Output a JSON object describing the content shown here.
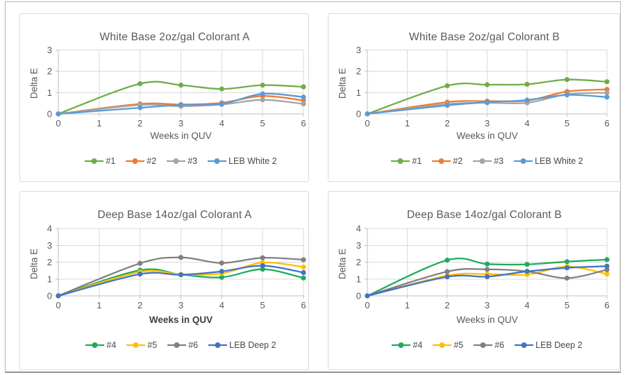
{
  "page": {
    "background": "#ffffff",
    "frame_border_color": "#b3b3b3",
    "panel_border_color": "#d9d9d9",
    "grid_color": "#d9d9d9",
    "axis_color": "#bfbfbf",
    "text_color": "#595959"
  },
  "chart_data": [
    {
      "type": "line",
      "title": "White Base 2oz/gal Colorant A",
      "xlabel": "Weeks in QUV",
      "ylabel": "Delta E",
      "xlabel_bold": false,
      "x": [
        0,
        2,
        3,
        4,
        5,
        6
      ],
      "xticks": [
        0,
        1,
        2,
        3,
        4,
        5,
        6
      ],
      "yticks": [
        0,
        1,
        2,
        3
      ],
      "xlim": [
        0,
        6
      ],
      "ylim": [
        0,
        3
      ],
      "grid": true,
      "legend_position": "bottom",
      "marker": "circle",
      "line_style": "smooth",
      "series": [
        {
          "name": "#1",
          "color": "#70AD47",
          "values": [
            0,
            1.42,
            1.35,
            1.17,
            1.35,
            1.27
          ]
        },
        {
          "name": "#2",
          "color": "#ED7D31",
          "values": [
            0,
            0.47,
            0.44,
            0.52,
            0.84,
            0.63
          ]
        },
        {
          "name": "#3",
          "color": "#A5A5A5",
          "values": [
            0,
            0.42,
            0.36,
            0.44,
            0.66,
            0.47
          ]
        },
        {
          "name": "LEB White 2",
          "color": "#5B9BD5",
          "values": [
            0,
            0.29,
            0.42,
            0.47,
            0.94,
            0.79
          ]
        }
      ]
    },
    {
      "type": "line",
      "title": "White Base 2oz/gal Colorant B",
      "xlabel": "Weeks in QUV",
      "ylabel": "Delta E",
      "xlabel_bold": false,
      "x": [
        0,
        2,
        3,
        4,
        5,
        6
      ],
      "xticks": [
        0,
        1,
        2,
        3,
        4,
        5,
        6
      ],
      "yticks": [
        0,
        1,
        2,
        3
      ],
      "xlim": [
        0,
        6
      ],
      "ylim": [
        0,
        3
      ],
      "grid": true,
      "legend_position": "bottom",
      "marker": "circle",
      "line_style": "smooth",
      "series": [
        {
          "name": "#1",
          "color": "#70AD47",
          "values": [
            0,
            1.32,
            1.37,
            1.39,
            1.61,
            1.51
          ]
        },
        {
          "name": "#2",
          "color": "#ED7D31",
          "values": [
            0,
            0.55,
            0.6,
            0.62,
            1.05,
            1.15
          ]
        },
        {
          "name": "#3",
          "color": "#A5A5A5",
          "values": [
            0,
            0.46,
            0.52,
            0.52,
            0.92,
            0.99
          ]
        },
        {
          "name": "LEB White 2",
          "color": "#5B9BD5",
          "values": [
            0,
            0.4,
            0.55,
            0.65,
            0.89,
            0.79
          ]
        }
      ]
    },
    {
      "type": "line",
      "title": "Deep Base 14oz/gal Colorant A",
      "xlabel": "Weeks in QUV",
      "ylabel": "Delta E",
      "xlabel_bold": true,
      "x": [
        0,
        2,
        3,
        4,
        5,
        6
      ],
      "xticks": [
        0,
        1,
        2,
        3,
        4,
        5,
        6
      ],
      "yticks": [
        0,
        1,
        2,
        3,
        4
      ],
      "xlim": [
        0,
        6
      ],
      "ylim": [
        0,
        4
      ],
      "grid": true,
      "legend_position": "bottom",
      "marker": "circle",
      "line_style": "smooth",
      "series": [
        {
          "name": "#4",
          "color": "#1FAB5B",
          "values": [
            0,
            1.52,
            1.26,
            1.1,
            1.58,
            1.06
          ]
        },
        {
          "name": "#5",
          "color": "#FFC000",
          "values": [
            0,
            1.42,
            1.27,
            1.33,
            1.97,
            1.71
          ]
        },
        {
          "name": "#6",
          "color": "#808080",
          "values": [
            0,
            1.93,
            2.28,
            1.95,
            2.26,
            2.14
          ]
        },
        {
          "name": "LEB Deep 2",
          "color": "#4472C4",
          "values": [
            0,
            1.29,
            1.25,
            1.45,
            1.79,
            1.38
          ]
        }
      ]
    },
    {
      "type": "line",
      "title": "Deep Base 14oz/gal Colorant B",
      "xlabel": "Weeks in QUV",
      "ylabel": "Delta E",
      "xlabel_bold": false,
      "x": [
        0,
        2,
        3,
        4,
        5,
        6
      ],
      "xticks": [
        0,
        1,
        2,
        3,
        4,
        5,
        6
      ],
      "yticks": [
        0,
        1,
        2,
        3,
        4
      ],
      "xlim": [
        0,
        6
      ],
      "ylim": [
        0,
        4
      ],
      "grid": true,
      "legend_position": "bottom",
      "marker": "circle",
      "line_style": "smooth",
      "series": [
        {
          "name": "#4",
          "color": "#1FAB5B",
          "values": [
            0,
            2.12,
            1.89,
            1.87,
            2.03,
            2.15
          ]
        },
        {
          "name": "#5",
          "color": "#FFC000",
          "values": [
            0,
            1.2,
            1.29,
            1.26,
            1.74,
            1.29
          ]
        },
        {
          "name": "#6",
          "color": "#808080",
          "values": [
            0,
            1.44,
            1.57,
            1.45,
            1.05,
            1.55
          ]
        },
        {
          "name": "LEB Deep 2",
          "color": "#4472C4",
          "values": [
            0,
            1.13,
            1.14,
            1.45,
            1.66,
            1.76
          ]
        }
      ]
    }
  ]
}
